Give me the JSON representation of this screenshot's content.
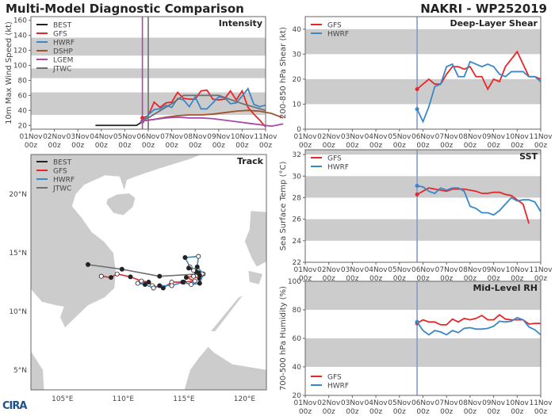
{
  "header": {
    "title": "Multi-Model Diagnostic Comparison",
    "storm": "NAKRI - WP252019"
  },
  "logo": "CIRA",
  "colors": {
    "BEST": "#222222",
    "GFS": "#e8262a",
    "HWRF": "#3a87c8",
    "DSHP": "#a0522d",
    "LGEM": "#a64ca6",
    "JTWC": "#707070",
    "band": "#cccccc",
    "init_line": "#8a9cc4"
  },
  "x_ticks": [
    {
      "day": "01Nov",
      "hour": "00z"
    },
    {
      "day": "02Nov",
      "hour": "00z"
    },
    {
      "day": "03Nov",
      "hour": "00z"
    },
    {
      "day": "04Nov",
      "hour": "00z"
    },
    {
      "day": "05Nov",
      "hour": "00z"
    },
    {
      "day": "06Nov",
      "hour": "00z"
    },
    {
      "day": "07Nov",
      "hour": "00z"
    },
    {
      "day": "08Nov",
      "hour": "00z"
    },
    {
      "day": "09Nov",
      "hour": "00z"
    },
    {
      "day": "10Nov",
      "hour": "00z"
    },
    {
      "day": "11Nov",
      "hour": "00z"
    }
  ],
  "chart_data": [
    {
      "id": "intensity",
      "type": "line",
      "title": "Intensity",
      "ylabel": "10m Max Wind Speed (kt)",
      "xlim": [
        "01Nov00z",
        "11Nov00z"
      ],
      "ylim": [
        15,
        165
      ],
      "yticks": [
        20,
        40,
        60,
        80,
        100,
        120,
        140,
        160
      ],
      "bands": [
        [
          34,
          64
        ],
        [
          83,
          96
        ],
        [
          113,
          137
        ]
      ],
      "legend": "top-left",
      "vlines": [
        {
          "x": "05Nov18z",
          "color": "LGEM"
        },
        {
          "x": "06Nov00z",
          "color": "JTWC"
        }
      ],
      "series": [
        {
          "name": "BEST",
          "x_start": "03Nov18z",
          "interval_hours": 6,
          "values": [
            20,
            20,
            20,
            20,
            20,
            20,
            20,
            20,
            25
          ]
        },
        {
          "name": "GFS",
          "x_start": "05Nov18z",
          "interval_hours": 6,
          "values": [
            30,
            33,
            51,
            44,
            50,
            51,
            64,
            56,
            55,
            55,
            66,
            67,
            55,
            54,
            55,
            66,
            54,
            66,
            44,
            35,
            27,
            18
          ]
        },
        {
          "name": "HWRF",
          "x_start": "05Nov18z",
          "interval_hours": 6,
          "values": [
            25,
            34,
            41,
            42,
            47,
            44,
            56,
            54,
            45,
            58,
            42,
            42,
            50,
            58,
            57,
            49,
            50,
            59,
            69,
            48,
            45,
            47
          ]
        },
        {
          "name": "DSHP",
          "x_start": "05Nov18z",
          "interval_hours": 12,
          "values": [
            26,
            28,
            31,
            33,
            34,
            34,
            35,
            37,
            39,
            40,
            39,
            36,
            30
          ]
        },
        {
          "name": "LGEM",
          "x_start": "05Nov18z",
          "interval_hours": 12,
          "values": [
            26,
            28,
            30,
            31,
            30,
            30,
            29,
            27,
            25,
            23,
            21,
            19,
            22
          ]
        },
        {
          "name": "JTWC",
          "x_start": "05Nov18z",
          "interval_hours": 6,
          "values": [
            27,
            30,
            null,
            null,
            null,
            49,
            null,
            60,
            null,
            60,
            null,
            null,
            null,
            60,
            null,
            null,
            null,
            49,
            null,
            null,
            null,
            40
          ]
        }
      ]
    },
    {
      "id": "shear",
      "type": "line",
      "title": "Deep-Layer Shear",
      "ylabel": "200-850 hPa Shear (kt)",
      "xlim": [
        "01Nov00z",
        "11Nov00z"
      ],
      "ylim": [
        0,
        45
      ],
      "yticks": [
        0,
        10,
        20,
        30,
        40
      ],
      "bands": [
        [
          10,
          20
        ],
        [
          30,
          40
        ]
      ],
      "legend": "top-left",
      "vlines": [
        {
          "x": "05Nov18z",
          "color": "init_line"
        }
      ],
      "series": [
        {
          "name": "GFS",
          "x_start": "05Nov18z",
          "interval_hours": 6,
          "values": [
            16,
            18,
            20,
            18,
            18,
            22,
            25,
            25,
            24,
            25,
            21,
            21,
            16,
            20,
            19,
            25,
            28,
            31,
            26,
            21,
            21,
            20
          ]
        },
        {
          "name": "HWRF",
          "x_start": "05Nov18z",
          "interval_hours": 6,
          "values": [
            8,
            3,
            9,
            17,
            18,
            25,
            26,
            21,
            21,
            27,
            26,
            25,
            26,
            25,
            22,
            21,
            23,
            23,
            23,
            21,
            21,
            19
          ]
        }
      ]
    },
    {
      "id": "sst",
      "type": "line",
      "title": "SST",
      "ylabel": "Sea Surface Temp (°C)",
      "xlim": [
        "01Nov00z",
        "11Nov00z"
      ],
      "ylim": [
        22,
        32.45
      ],
      "yticks": [
        22,
        24,
        26,
        28,
        30,
        32
      ],
      "bands": [
        [
          24,
          26
        ],
        [
          28,
          30
        ],
        [
          32,
          33
        ]
      ],
      "legend": "top-left",
      "vlines": [
        {
          "x": "05Nov18z",
          "color": "init_line"
        }
      ],
      "series": [
        {
          "name": "GFS",
          "x_start": "05Nov18z",
          "interval_hours": 6,
          "values": [
            28.3,
            28.6,
            28.9,
            28.8,
            28.7,
            28.6,
            28.8,
            28.8,
            28.8,
            28.7,
            28.6,
            28.4,
            28.4,
            28.5,
            28.5,
            28.3,
            28.2,
            27.8,
            27.4,
            25.6
          ]
        },
        {
          "name": "HWRF",
          "x_start": "05Nov18z",
          "interval_hours": 6,
          "values": [
            29.1,
            29.0,
            28.6,
            28.4,
            28.9,
            28.7,
            28.9,
            28.9,
            28.6,
            27.2,
            27.0,
            26.6,
            26.6,
            26.4,
            26.8,
            27.4,
            28.0,
            27.7,
            27.8,
            27.8,
            27.6,
            26.7
          ]
        }
      ]
    },
    {
      "id": "rh",
      "type": "line",
      "title": "Mid-Level RH",
      "ylabel": "700-500 hPa Humidity (%)",
      "xlim": [
        "01Nov00z",
        "11Nov00z"
      ],
      "ylim": [
        20,
        100
      ],
      "yticks": [
        20,
        40,
        60,
        80,
        100
      ],
      "bands": [
        [
          40,
          60
        ],
        [
          80,
          100
        ]
      ],
      "legend": "bottom-left",
      "vlines": [
        {
          "x": "05Nov18z",
          "color": "init_line"
        }
      ],
      "series": [
        {
          "name": "GFS",
          "x_start": "05Nov18z",
          "interval_hours": 6,
          "values": [
            70.5,
            73,
            71.5,
            71.5,
            69.5,
            69.5,
            73.5,
            71.5,
            74,
            73,
            74,
            76,
            73,
            73,
            76.5,
            73.5,
            73,
            73,
            73,
            70,
            70.5,
            70.5
          ]
        },
        {
          "name": "HWRF",
          "x_start": "05Nov18z",
          "interval_hours": 6,
          "values": [
            71.5,
            65.5,
            62.5,
            65.5,
            64.5,
            62.5,
            65.5,
            64,
            67,
            67.5,
            66.5,
            66.5,
            67,
            68.5,
            72,
            71.5,
            72,
            74.5,
            73,
            68,
            66,
            62.5
          ]
        }
      ]
    },
    {
      "id": "track",
      "type": "map",
      "title": "Track",
      "legend": "top-left",
      "xlim": [
        102.4,
        121.8
      ],
      "ylim": [
        3.3,
        23.4
      ],
      "xticks": [
        {
          "v": 105,
          "label": "105°E"
        },
        {
          "v": 110,
          "label": "110°E"
        },
        {
          "v": 115,
          "label": "115°E"
        },
        {
          "v": 120,
          "label": "120°E"
        }
      ],
      "yticks": [
        {
          "v": 5,
          "label": "5°N"
        },
        {
          "v": 10,
          "label": "10°N"
        },
        {
          "v": 15,
          "label": "15°N"
        },
        {
          "v": 20,
          "label": "20°N"
        }
      ],
      "series": [
        {
          "name": "BEST",
          "points": [
            [
              115.4,
              13.7
            ],
            [
              115.8,
              13.5
            ],
            [
              116.2,
              13.3
            ],
            [
              116.5,
              13.2
            ],
            [
              116.3,
              13.1
            ]
          ]
        },
        {
          "name": "GFS",
          "points": [
            [
              116.3,
              12.8
            ],
            [
              115.8,
              13.0
            ],
            [
              115.2,
              12.9
            ],
            [
              115.9,
              12.6
            ],
            [
              115.0,
              12.5
            ],
            [
              114.0,
              12.5
            ],
            [
              113.3,
              12.0
            ],
            [
              112.4,
              12.2
            ],
            [
              112.1,
              12.5
            ],
            [
              111.5,
              12.6
            ],
            [
              110.6,
              12.95
            ],
            [
              109.5,
              13.2
            ],
            [
              109.0,
              12.9
            ],
            [
              108.2,
              13.0
            ]
          ]
        },
        {
          "name": "HWRF",
          "points": [
            [
              116.0,
              13.4
            ],
            [
              115.5,
              13.8
            ],
            [
              115.1,
              14.6
            ],
            [
              116.2,
              14.7
            ],
            [
              116.1,
              13.8
            ],
            [
              116.6,
              13.2
            ],
            [
              116.3,
              12.4
            ],
            [
              115.6,
              12.3
            ],
            [
              114.9,
              12.5
            ],
            [
              114.0,
              12.2
            ],
            [
              113.0,
              12.2
            ],
            [
              112.5,
              12.0
            ],
            [
              111.8,
              12.3
            ],
            [
              111.2,
              12.4
            ]
          ]
        },
        {
          "name": "JTWC",
          "points": [
            [
              116.3,
              13.2
            ],
            [
              113.0,
              13.0
            ],
            [
              109.9,
              13.6
            ],
            [
              107.1,
              14.0
            ]
          ]
        }
      ]
    }
  ]
}
